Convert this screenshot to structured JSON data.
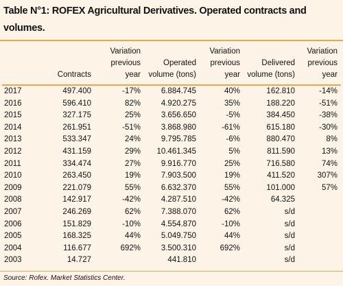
{
  "title": "Table N°1: ROFEX Agricultural Derivatives. Operated contracts and volumes.",
  "table": {
    "header": [
      null,
      "Contracts",
      "Variation previous year",
      "Operated volume (tons)",
      "Variation previous year",
      "Delivered volume (tons)",
      "Variation previous year"
    ],
    "rows": [
      [
        "2017",
        "497.400",
        "-17%",
        "6.884.745",
        "40%",
        "162.810",
        "-14%"
      ],
      [
        "2016",
        "596.410",
        "82%",
        "4.920.275",
        "35%",
        "188.220",
        "-51%"
      ],
      [
        "2015",
        "327.175",
        "25%",
        "3.656.650",
        "-5%",
        "384.450",
        "-38%"
      ],
      [
        "2014",
        "261.951",
        "-51%",
        "3.868.980",
        "-61%",
        "615.180",
        "-30%"
      ],
      [
        "2013",
        "533.347",
        "24%",
        "9.795.785",
        "-6%",
        "880.470",
        "8%"
      ],
      [
        "2012",
        "431.159",
        "29%",
        "10.461.345",
        "5%",
        "811.590",
        "13%"
      ],
      [
        "2011",
        "334.474",
        "27%",
        "9.916.770",
        "25%",
        "716.580",
        "74%"
      ],
      [
        "2010",
        "263.450",
        "19%",
        "7.903.500",
        "19%",
        "411.520",
        "307%"
      ],
      [
        "2009",
        "221.079",
        "55%",
        "6.632.370",
        "55%",
        "101.000",
        "57%"
      ],
      [
        "2008",
        "142.917",
        "-42%",
        "4.287.510",
        "-42%",
        "64.325",
        null
      ],
      [
        "2007",
        "246.269",
        "62%",
        "7.388.070",
        "62%",
        "s/d",
        null
      ],
      [
        "2006",
        "151.829",
        "-10%",
        "4.554.870",
        "-10%",
        "s/d",
        null
      ],
      [
        "2005",
        "168.325",
        "44%",
        "5.049.750",
        "44%",
        "s/d",
        null
      ],
      [
        "2004",
        "116.677",
        "692%",
        "3.500.310",
        "692%",
        "s/d",
        null
      ],
      [
        "2003",
        "14.727",
        null,
        "441.810",
        null,
        "s/d",
        null
      ]
    ]
  },
  "source": "Source: Rofex. Market Statistics Center."
}
